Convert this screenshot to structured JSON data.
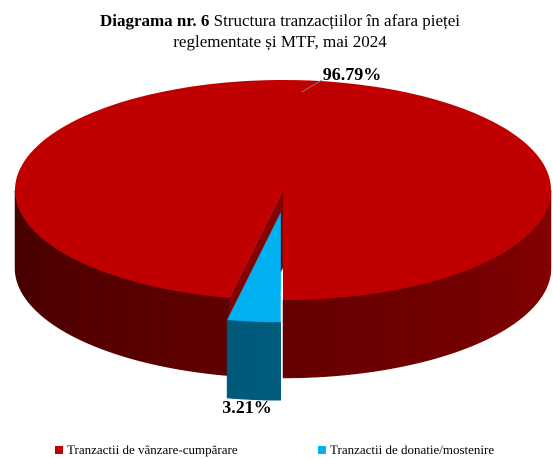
{
  "chart_data": {
    "type": "pie3d",
    "title_label": "Diagrama nr. 6",
    "title": "Structura tranzacțiilor în afara pieței reglementate și MTF, mai 2024",
    "categories": [
      "Tranzactii de vânzare-cumpărare",
      "Tranzactii de donatie/mostenire"
    ],
    "values": [
      96.79,
      3.21
    ],
    "value_labels": [
      "96.79%",
      "3.21%"
    ],
    "colors": [
      "#c00000",
      "#00b0f0"
    ],
    "legend": "bottom"
  }
}
